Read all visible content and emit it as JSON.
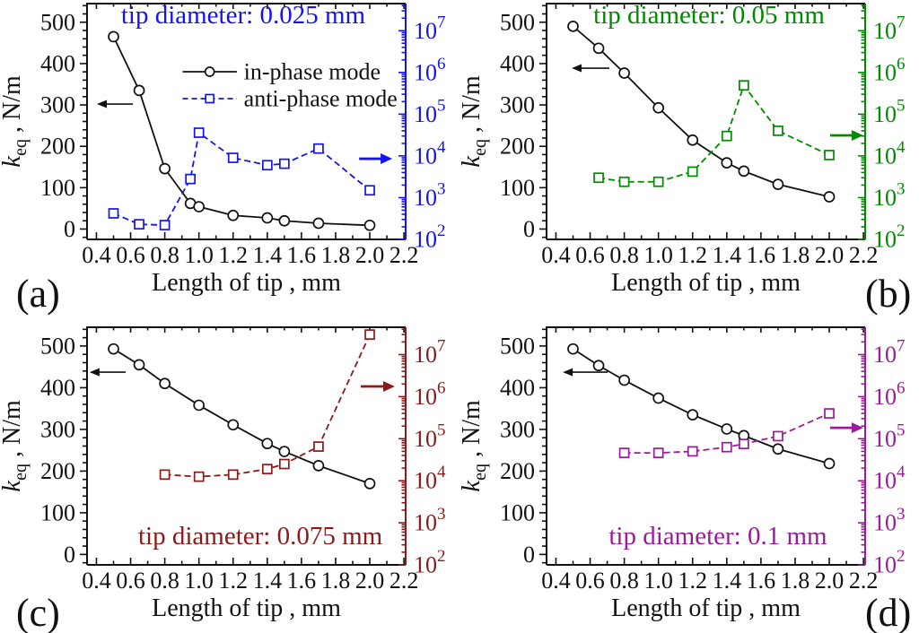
{
  "chart_data": {
    "type": "line",
    "xlabel": "Length of tip , mm",
    "ylabel_left": {
      "symbol": "k",
      "subscript": "eq",
      "unit": " , N/m"
    },
    "in_phase_color": "#111111",
    "x_axis": {
      "min": 0.345,
      "max": 2.21,
      "major_step": 0.2,
      "minor_step": 0.1,
      "tick_values": [
        0.4,
        0.6,
        0.8,
        1.0,
        1.2,
        1.4,
        1.6,
        1.8,
        2.0,
        2.2
      ],
      "tick_labels": [
        "0.4",
        "0.6",
        "0.8",
        "1.0",
        "1.2",
        "1.4",
        "1.6",
        "1.8",
        "2.0",
        "2.2"
      ]
    },
    "left_axis": {
      "min": -25,
      "max": 545,
      "major_step": 100,
      "minor_step": 20,
      "tick_values": [
        0,
        100,
        200,
        300,
        400,
        500
      ],
      "tick_labels": [
        "0",
        "100",
        "200",
        "300",
        "400",
        "500"
      ]
    },
    "right_axis": {
      "scale": "log",
      "min_exponent": 2,
      "max_exponent": 7.65,
      "label_base": "10",
      "label_exponents": [
        2,
        3,
        4,
        5,
        6,
        7
      ]
    },
    "legend": {
      "entries": [
        {
          "label": "in-phase mode",
          "series": "in_phase"
        },
        {
          "label": "anti-phase mode",
          "series": "anti_phase"
        }
      ]
    },
    "panels": [
      {
        "id": "a",
        "panel_label": "(a)",
        "panel_label_side": "left",
        "title": "tip diameter: 0.025 mm",
        "accent_color": "#1414EE",
        "title_pos": {
          "fx": 0.49,
          "fy": 0.049
        },
        "show_legend": true,
        "series": {
          "in_phase": {
            "axis": "left",
            "marker": "circle",
            "line": "solid",
            "x": [
              0.5,
              0.65,
              0.8,
              0.95,
              1.0,
              1.2,
              1.4,
              1.5,
              1.7,
              2.0
            ],
            "y": [
              465,
              335,
              146,
              62,
              54,
              33,
              27,
              20,
              14,
              9
            ]
          },
          "anti_phase": {
            "axis": "right",
            "marker": "square",
            "line": "dashed",
            "x": [
              0.5,
              0.65,
              0.8,
              0.95,
              1.0,
              1.2,
              1.4,
              1.5,
              1.7,
              2.0
            ],
            "y": [
              420,
              230,
              220,
              2800,
              36000,
              9000,
              6000,
              6500,
              15000,
              1500
            ]
          }
        },
        "arrows": {
          "left": {
            "fx_tail": 0.144,
            "fx_tip": 0.031,
            "fy": 0.426
          },
          "right": {
            "fx_tail": 0.854,
            "fx_tip": 0.958,
            "fy": 0.658
          }
        }
      },
      {
        "id": "b",
        "panel_label": "(b)",
        "panel_label_side": "right",
        "title": "tip diameter: 0.05 mm",
        "accent_color": "#008A00",
        "title_pos": {
          "fx": 0.51,
          "fy": 0.049
        },
        "show_legend": false,
        "series": {
          "in_phase": {
            "axis": "left",
            "marker": "circle",
            "line": "solid",
            "x": [
              0.5,
              0.65,
              0.8,
              1.0,
              1.2,
              1.4,
              1.5,
              1.7,
              2.0
            ],
            "y": [
              490,
              437,
              377,
              293,
              215,
              160,
              140,
              108,
              78
            ]
          },
          "anti_phase": {
            "axis": "right",
            "marker": "square",
            "line": "dashed",
            "x": [
              0.65,
              0.8,
              1.0,
              1.2,
              1.4,
              1.5,
              1.7,
              2.0
            ],
            "y": [
              3000,
              2400,
              2400,
              4200,
              30000,
              490000,
              40000,
              10500
            ]
          }
        },
        "arrows": {
          "left": {
            "fx_tail": 0.197,
            "fx_tip": 0.079,
            "fy": 0.274
          },
          "right": {
            "fx_tail": 0.89,
            "fx_tip": 0.994,
            "fy": 0.559
          }
        }
      },
      {
        "id": "c",
        "panel_label": "(c)",
        "panel_label_side": "left",
        "title": "tip diameter: 0.075 mm",
        "accent_color": "#8B1A1A",
        "title_pos": {
          "fx": 0.544,
          "fy": 0.879
        },
        "show_legend": false,
        "series": {
          "in_phase": {
            "axis": "left",
            "marker": "circle",
            "line": "solid",
            "x": [
              0.5,
              0.65,
              0.8,
              1.0,
              1.2,
              1.4,
              1.5,
              1.7,
              2.0
            ],
            "y": [
              493,
              455,
              410,
              358,
              311,
              266,
              247,
              213,
              170
            ]
          },
          "anti_phase": {
            "axis": "right",
            "marker": "square",
            "line": "dashed",
            "x": [
              0.8,
              1.0,
              1.2,
              1.4,
              1.5,
              1.7,
              2.0
            ],
            "y": [
              14000,
              12500,
              14000,
              19000,
              25000,
              65000,
              30000000
            ]
          }
        },
        "arrows": {
          "left": {
            "fx_tail": 0.121,
            "fx_tip": 0.008,
            "fy": 0.189
          },
          "right": {
            "fx_tail": 0.859,
            "fx_tip": 0.966,
            "fy": 0.249
          }
        }
      },
      {
        "id": "d",
        "panel_label": "(d)",
        "panel_label_side": "right",
        "title": "tip diameter: 0.1 mm",
        "accent_color": "#9B1B9B",
        "title_pos": {
          "fx": 0.538,
          "fy": 0.879
        },
        "show_legend": false,
        "series": {
          "in_phase": {
            "axis": "left",
            "marker": "circle",
            "line": "solid",
            "x": [
              0.5,
              0.65,
              0.8,
              1.0,
              1.2,
              1.4,
              1.5,
              1.7,
              2.0
            ],
            "y": [
              493,
              453,
              418,
              375,
              335,
              301,
              285,
              253,
              218
            ]
          },
          "anti_phase": {
            "axis": "right",
            "marker": "square",
            "line": "dashed",
            "x": [
              0.8,
              1.0,
              1.2,
              1.4,
              1.5,
              1.7,
              2.0
            ],
            "y": [
              46000,
              46000,
              50000,
              63000,
              75000,
              115000,
              400000
            ]
          }
        },
        "arrows": {
          "left": {
            "fx_tail": 0.192,
            "fx_tip": 0.051,
            "fy": 0.189
          },
          "right": {
            "fx_tail": 0.89,
            "fx_tip": 0.994,
            "fy": 0.423
          }
        }
      }
    ]
  }
}
